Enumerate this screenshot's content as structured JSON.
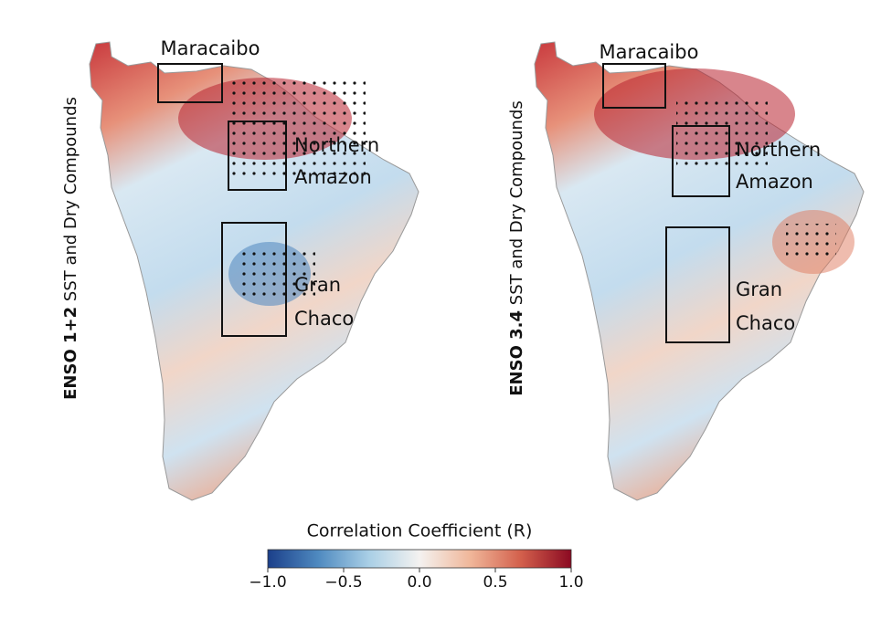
{
  "panels": [
    {
      "title_bold": "ENSO 1+2",
      "title_rest": "SST and Dry Compounds",
      "regions": [
        {
          "lines": [
            "Maracaibo"
          ]
        },
        {
          "lines": [
            "Northern",
            "Amazon"
          ]
        },
        {
          "lines": [
            "Gran",
            "Chaco"
          ]
        }
      ]
    },
    {
      "title_bold": "ENSO 3.4",
      "title_rest": "SST and Dry Compounds",
      "regions": [
        {
          "lines": [
            "Maracaibo"
          ]
        },
        {
          "lines": [
            "Northern",
            "Amazon"
          ]
        },
        {
          "lines": [
            "Gran",
            "Chaco"
          ]
        }
      ]
    }
  ],
  "colorbar": {
    "label": "Correlation Coefficient (R)",
    "lim": [
      -1.0,
      1.0
    ],
    "ticks": [
      {
        "value": -1.0,
        "label": "−1.0"
      },
      {
        "value": -0.5,
        "label": "−0.5"
      },
      {
        "value": 0.0,
        "label": "0.0"
      },
      {
        "value": 0.5,
        "label": "0.5"
      },
      {
        "value": 1.0,
        "label": "1.0"
      }
    ],
    "colors": [
      "#1b3f8a",
      "#4f8ac0",
      "#a9cfe6",
      "#f4f2f0",
      "#f0b79a",
      "#d3604c",
      "#8b0a22"
    ]
  }
}
